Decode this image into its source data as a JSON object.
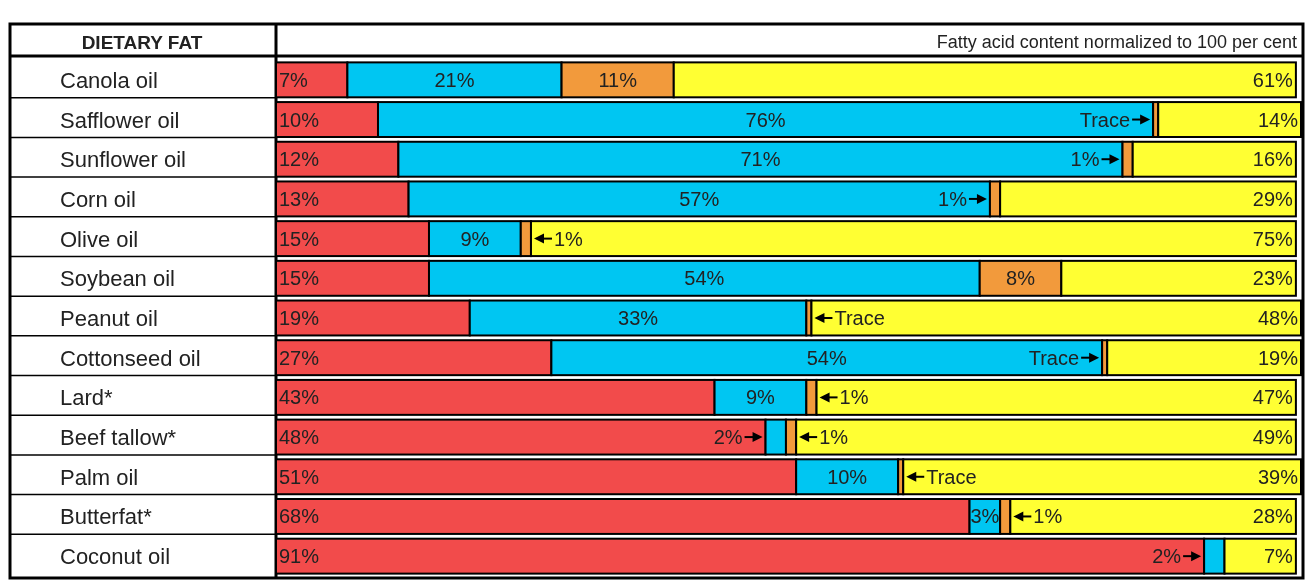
{
  "chart_data": {
    "type": "bar",
    "orientation": "horizontal",
    "stacked": true,
    "ylabel": "DIETARY FAT",
    "xlabel": "Fatty acid content normalized to 100 per cent",
    "categories": [
      "Canola oil",
      "Safflower oil",
      "Sunflower oil",
      "Corn oil",
      "Olive oil",
      "Soybean oil",
      "Peanut oil",
      "Cottonseed oil",
      "Lard*",
      "Beef tallow*",
      "Palm oil",
      "Butterfat*",
      "Coconut oil"
    ],
    "xlim": [
      0,
      100.5
    ],
    "series": [
      {
        "color": "#f24b4b",
        "values": [
          7,
          10,
          12,
          13,
          15,
          15,
          19,
          27,
          43,
          48,
          51,
          68,
          91
        ],
        "value_labels": [
          "7%",
          "10%",
          "12%",
          "13%",
          "15%",
          "15%",
          "19%",
          "27%",
          "43%",
          "48%",
          "51%",
          "68%",
          "91%"
        ]
      },
      {
        "color": "#00c6f2",
        "values": [
          21,
          76,
          71,
          57,
          9,
          54,
          33,
          54,
          9,
          2,
          10,
          3,
          2
        ],
        "value_labels": [
          "21%",
          "76%",
          "71%",
          "57%",
          "9%",
          "54%",
          "33%",
          "54%",
          "9%",
          "2%",
          "10%",
          "3%",
          "2%"
        ]
      },
      {
        "color": "#f29a3c",
        "values": [
          11,
          0.5,
          1,
          1,
          1,
          8,
          0.5,
          0.5,
          1,
          1,
          0.5,
          1,
          0
        ],
        "value_labels": [
          "11%",
          "Trace",
          "1%",
          "1%",
          "1%",
          "8%",
          "Trace",
          "Trace",
          "1%",
          "1%",
          "Trace",
          "1%",
          null
        ]
      },
      {
        "color": "#ffff33",
        "values": [
          61,
          14,
          16,
          29,
          75,
          23,
          48,
          19,
          47,
          49,
          39,
          28,
          7
        ],
        "value_labels": [
          "61%",
          "14%",
          "16%",
          "29%",
          "75%",
          "23%",
          "48%",
          "19%",
          "47%",
          "49%",
          "39%",
          "28%",
          "7%"
        ]
      }
    ]
  }
}
